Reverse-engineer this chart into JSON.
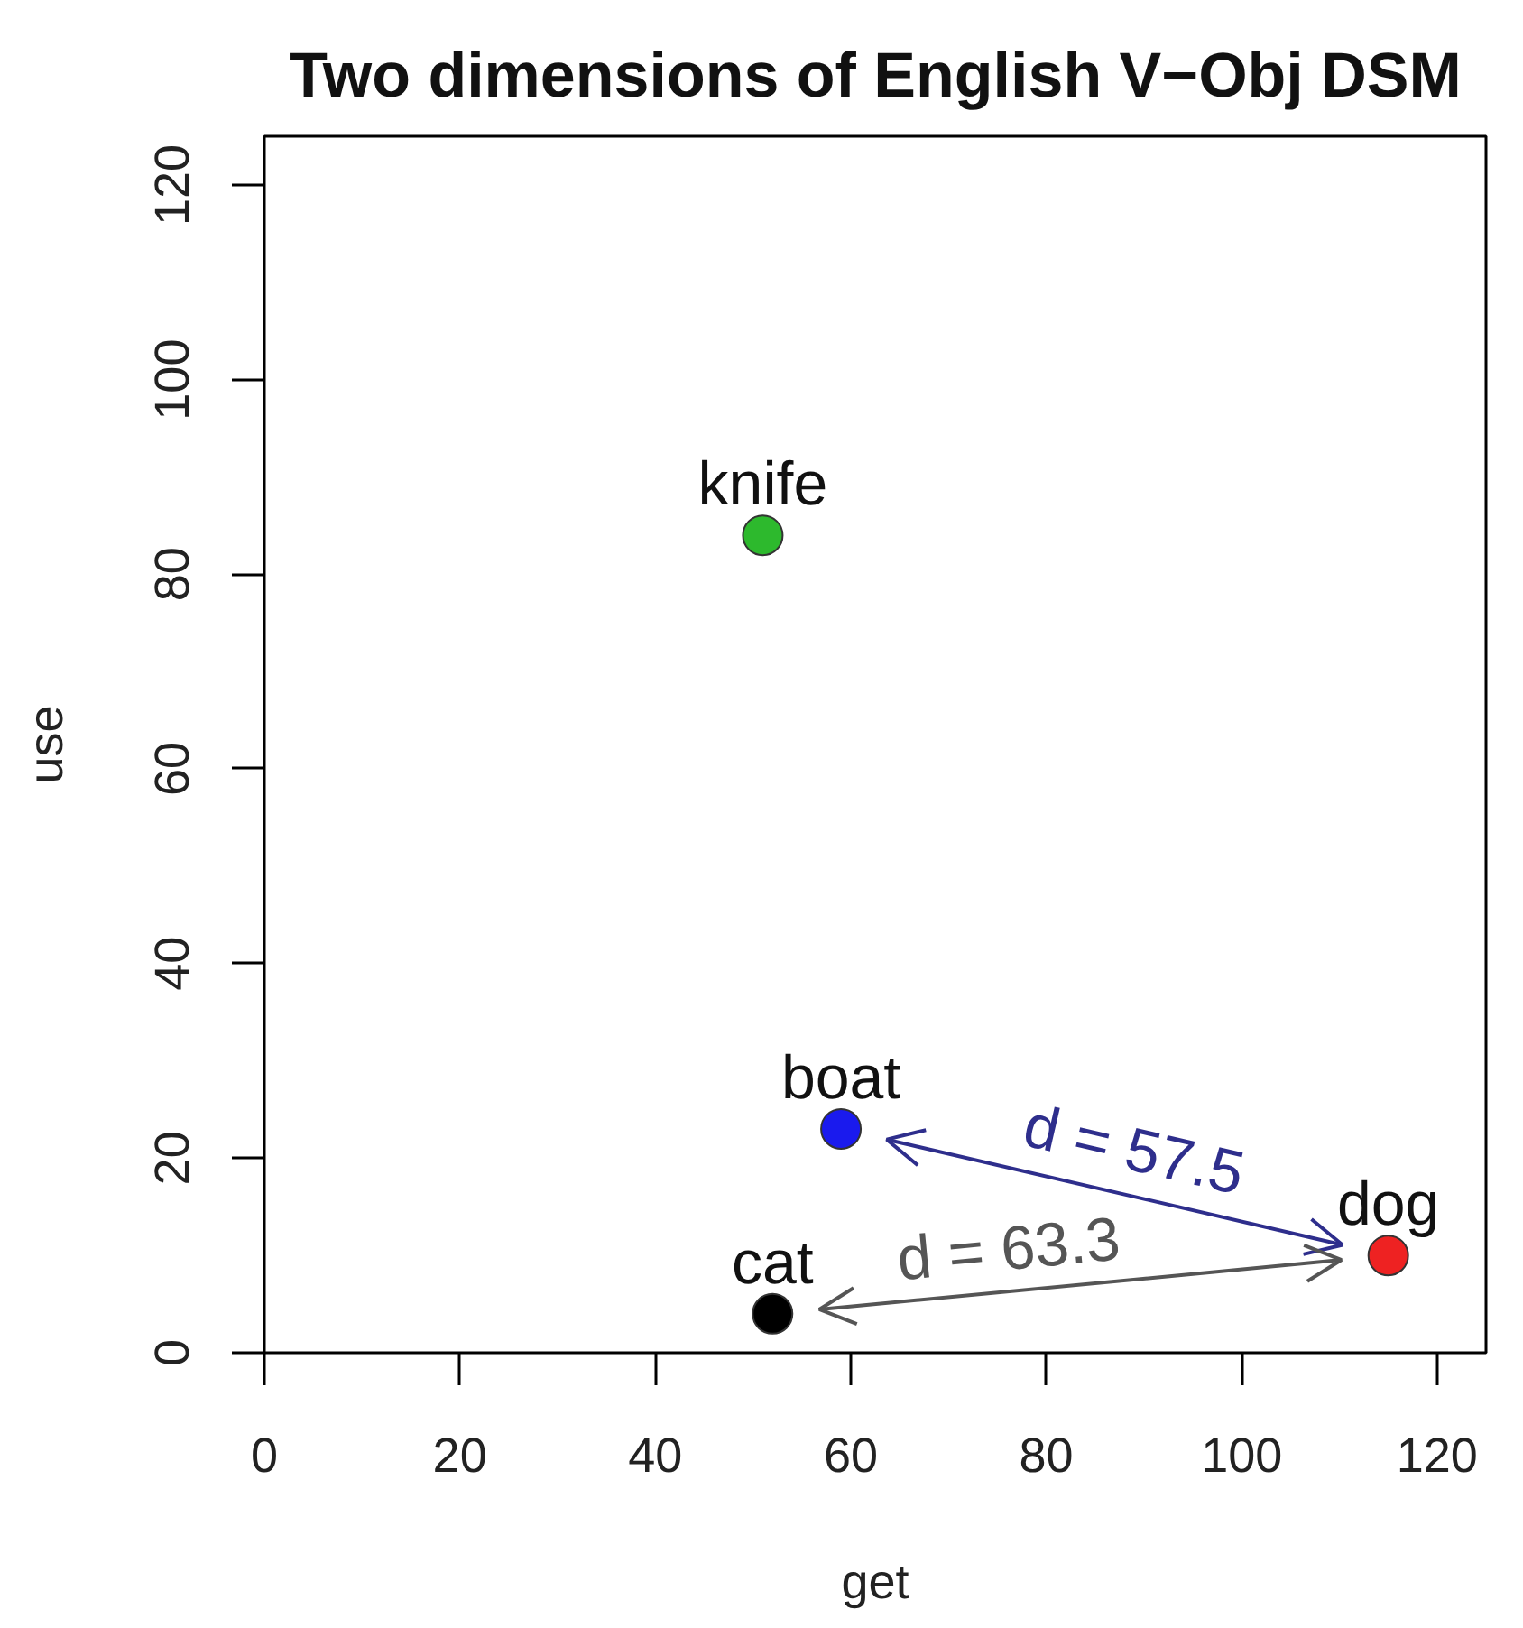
{
  "chart_data": {
    "type": "scatter",
    "title": "Two dimensions of English V−Obj DSM",
    "xlabel": "get",
    "ylabel": "use",
    "xlim": [
      0,
      125
    ],
    "ylim": [
      0,
      125
    ],
    "xticks": [
      0,
      20,
      40,
      60,
      80,
      100,
      120
    ],
    "yticks": [
      0,
      20,
      40,
      60,
      80,
      100,
      120
    ],
    "marker": "circle",
    "series": [
      {
        "name": "knife",
        "color": "#2db92d",
        "x": [
          51
        ],
        "values": [
          84
        ]
      },
      {
        "name": "boat",
        "color": "#1a1aee",
        "x": [
          59
        ],
        "values": [
          23
        ]
      },
      {
        "name": "cat",
        "color": "#000000",
        "x": [
          52
        ],
        "values": [
          4
        ]
      },
      {
        "name": "dog",
        "color": "#ee2222",
        "x": [
          115
        ],
        "values": [
          10
        ]
      }
    ],
    "annotations": [
      "d = 57.5",
      "d = 63.3"
    ]
  }
}
